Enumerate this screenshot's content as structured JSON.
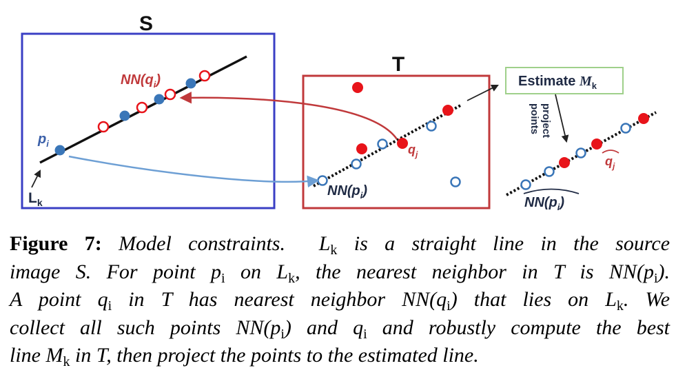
{
  "diagram": {
    "source_panel_label": "S",
    "target_panel_label": "T",
    "line_label": "L",
    "line_label_sub": "k",
    "point_p_label": "p",
    "point_p_sub": "i",
    "nn_q_label_prefix": "NN(q",
    "nn_q_label_sub": "i",
    "nn_q_label_suffix": ")",
    "point_q_label": "q",
    "point_q_sub": "j",
    "nn_p_label_prefix": "NN(p",
    "nn_p_label_sub": "i",
    "nn_p_label_suffix": ")",
    "estimate_label_prefix": "Estimate ",
    "estimate_label_m": "M",
    "estimate_label_sub": "k",
    "project_label_line1": "project",
    "project_label_line2": "points",
    "q_hat_label": "q",
    "q_hat_sub": "j",
    "nn_p_hat_prefix": "NN(p",
    "nn_p_hat_sub": "i",
    "nn_p_hat_suffix": ")",
    "colors": {
      "source_frame": "#3a3fc4",
      "target_frame": "#c0393b",
      "filled_red": "#e8141a",
      "filled_blue": "#3a76b8",
      "open_blue_stroke": "#3a76b8",
      "open_red_stroke": "#e8141a",
      "red_arrow": "#c0393b",
      "blue_arrow": "#6d9fd4",
      "estimate_box_border": "#9fd08a",
      "label_red": "#c0393b",
      "label_blue": "#3a5fa8",
      "label_dark": "#1f2a44"
    }
  },
  "caption": {
    "figure_label": "Figure 7:",
    "line1_rest": "Model constraints.",
    "line1_L": "L",
    "line1_L_sub": "k",
    "line1_tail": "is a straight line in the source",
    "line2_a": "image S.  For point",
    "line2_p": "p",
    "line2_p_sub": "i",
    "line2_b": "on",
    "line2_L": "L",
    "line2_L_sub": "k",
    "line2_c": ", the nearest neighbor in T is NN(",
    "line2_p2": "p",
    "line2_p2_sub": "i",
    "line2_d": ").",
    "line3_a": "A point",
    "line3_q": "q",
    "line3_q_sub": "i",
    "line3_b": "in T  has nearest neighbor NN(",
    "line3_q2": "q",
    "line3_q2_sub": "i",
    "line3_c": ") that lies on",
    "line3_L": "L",
    "line3_L_sub": "k",
    "line3_d": ".  We",
    "line4_a": "collect all such points NN(",
    "line4_p": "p",
    "line4_p_sub": "i",
    "line4_b": ") and",
    "line4_q": "q",
    "line4_q_sub": "i",
    "line4_c": "and robustly compute the best",
    "line5_a": "line",
    "line5_M": "M",
    "line5_M_sub": "k",
    "line5_b": "in T, then project the points to the estimated line."
  }
}
